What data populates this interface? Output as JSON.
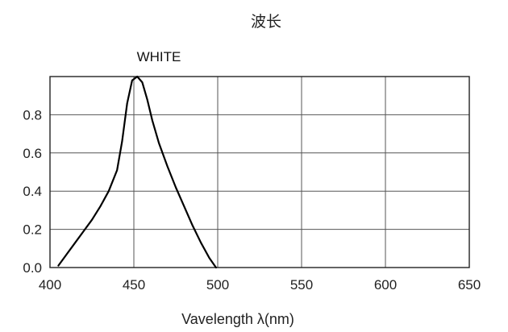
{
  "chart_data": {
    "type": "line",
    "title": "波长",
    "xlabel": "Vavelength λ(nm)",
    "ylabel": "",
    "xlim": [
      400,
      650
    ],
    "ylim": [
      0,
      1.0
    ],
    "x_ticks": [
      "400",
      "450",
      "500",
      "550",
      "600",
      "650"
    ],
    "y_ticks": [
      "0.0",
      "0.2",
      "0.4",
      "0.6",
      "0.8"
    ],
    "grid": true,
    "series": [
      {
        "name": "WHITE",
        "x": [
          405,
          410,
          415,
          420,
          425,
          430,
          435,
          440,
          443,
          446,
          449,
          452,
          455,
          458,
          461,
          465,
          470,
          475,
          480,
          485,
          490,
          495,
          499
        ],
        "y": [
          0.01,
          0.07,
          0.13,
          0.19,
          0.25,
          0.32,
          0.4,
          0.51,
          0.66,
          0.86,
          0.98,
          1.0,
          0.97,
          0.88,
          0.77,
          0.65,
          0.53,
          0.42,
          0.32,
          0.22,
          0.13,
          0.05,
          0.0
        ],
        "color": "#000000"
      }
    ]
  }
}
